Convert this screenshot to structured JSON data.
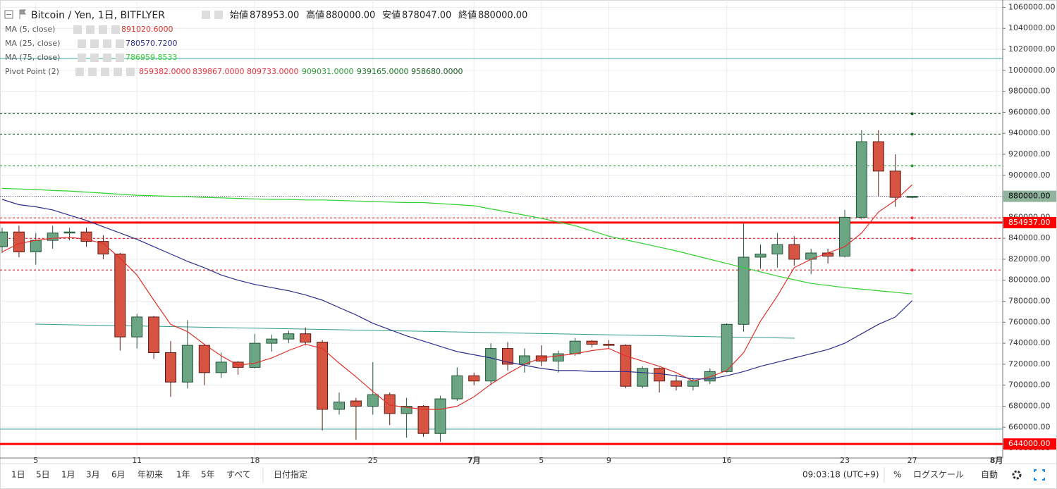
{
  "header": {
    "symbol": "Bitcoin / Yen, 1日, BITFLYER",
    "open_label": "始値",
    "open": "878953.00",
    "high_label": "高値",
    "high": "880000.00",
    "low_label": "安値",
    "low": "878047.00",
    "close_label": "終値",
    "close": "880000.00"
  },
  "chart_data": {
    "type": "candlestick",
    "categories": [
      null,
      null,
      "5",
      null,
      null,
      null,
      null,
      null,
      "11",
      null,
      null,
      null,
      null,
      null,
      null,
      "18",
      null,
      null,
      null,
      null,
      null,
      null,
      "25",
      null,
      null,
      null,
      null,
      null,
      "7月",
      null,
      null,
      null,
      "5",
      null,
      null,
      null,
      "9",
      null,
      null,
      null,
      null,
      null,
      null,
      "16",
      null,
      null,
      null,
      null,
      null,
      null,
      "23",
      null,
      null,
      null,
      "27",
      null,
      null,
      null,
      null,
      "8月"
    ],
    "open": [
      832000,
      846000,
      827000,
      838000,
      845000,
      846000,
      837000,
      825000,
      746000,
      765000,
      731000,
      703000,
      738000,
      712000,
      722000,
      717000,
      740000,
      744000,
      749000,
      741000,
      677000,
      685000,
      680000,
      691000,
      673000,
      680000,
      654000,
      687000,
      709000,
      704000,
      735000,
      720000,
      728000,
      723000,
      730000,
      742000,
      739000,
      738000,
      699000,
      716000,
      704000,
      699000,
      704000,
      713000,
      758000,
      822000,
      825000,
      834000,
      820000,
      826000,
      823000,
      860000,
      932000,
      904000,
      878953,
      null,
      null,
      null,
      null,
      null
    ],
    "high": [
      850000,
      852000,
      845000,
      852000,
      850000,
      850000,
      843000,
      826000,
      768000,
      766000,
      742000,
      762000,
      739000,
      731000,
      723000,
      749000,
      748000,
      752000,
      755000,
      743000,
      693000,
      688000,
      722000,
      693000,
      688000,
      681000,
      690000,
      717000,
      712000,
      740000,
      741000,
      735000,
      738000,
      733000,
      745000,
      743000,
      743000,
      739000,
      718000,
      717000,
      710000,
      707000,
      716000,
      759000,
      854000,
      834000,
      845000,
      842000,
      830000,
      830000,
      867000,
      943000,
      943000,
      920000,
      880000,
      null,
      null,
      null,
      null,
      null
    ],
    "low": [
      826000,
      822000,
      815000,
      830000,
      838000,
      832000,
      820000,
      733000,
      735000,
      725000,
      689000,
      697000,
      700000,
      707000,
      710000,
      716000,
      732000,
      740000,
      738000,
      657000,
      672000,
      648000,
      672000,
      662000,
      650000,
      651000,
      646000,
      685000,
      700000,
      700000,
      714000,
      712000,
      718000,
      712000,
      728000,
      736000,
      735000,
      697000,
      697000,
      693000,
      695000,
      695000,
      701000,
      712000,
      751000,
      811000,
      812000,
      814000,
      806000,
      816000,
      822000,
      858000,
      880000,
      870000,
      878047,
      null,
      null,
      null,
      null,
      null
    ],
    "close": [
      846000,
      827000,
      838000,
      845000,
      846000,
      837000,
      825000,
      746000,
      765000,
      731000,
      703000,
      738000,
      712000,
      722000,
      717000,
      740000,
      744000,
      749000,
      741000,
      677000,
      684000,
      680000,
      691000,
      673000,
      680000,
      654000,
      687000,
      709000,
      704000,
      735000,
      720000,
      728000,
      723000,
      730000,
      742000,
      739000,
      738000,
      699000,
      716000,
      704000,
      699000,
      704000,
      713000,
      758000,
      822000,
      825000,
      834000,
      820000,
      826000,
      823000,
      860000,
      932000,
      904000,
      879000,
      880000,
      null,
      null,
      null,
      null,
      null
    ],
    "up_color": "#6ba583",
    "down_color": "#d75442",
    "ylim": [
      632000,
      1065000
    ],
    "yticks": [
      {
        "value": 640000,
        "label": "640000.00"
      },
      {
        "value": 660000,
        "label": "660000.00"
      },
      {
        "value": 680000,
        "label": "680000.00"
      },
      {
        "value": 700000,
        "label": "700000.00"
      },
      {
        "value": 720000,
        "label": "720000.00"
      },
      {
        "value": 740000,
        "label": "740000.00"
      },
      {
        "value": 760000,
        "label": "760000.00"
      },
      {
        "value": 780000,
        "label": "780000.00"
      },
      {
        "value": 800000,
        "label": "800000.00"
      },
      {
        "value": 820000,
        "label": "820000.00"
      },
      {
        "value": 840000,
        "label": "840000.00"
      },
      {
        "value": 860000,
        "label": "860000.00"
      },
      {
        "value": 880000,
        "label": "880000.00"
      },
      {
        "value": 900000,
        "label": "900000.00"
      },
      {
        "value": 920000,
        "label": "920000.00"
      },
      {
        "value": 940000,
        "label": "940000.00"
      },
      {
        "value": 960000,
        "label": "960000.00"
      },
      {
        "value": 980000,
        "label": "980000.00"
      },
      {
        "value": 1000000,
        "label": "1000000.00"
      },
      {
        "value": 1020000,
        "label": "1020000.00"
      },
      {
        "value": 1040000,
        "label": "1040000.00"
      },
      {
        "value": 1060000,
        "label": "1060000.00"
      }
    ],
    "grid": true,
    "series": [
      {
        "name": "MA (5, close)",
        "color": "#e0302a",
        "value_label": "891020.6000",
        "values": [
          827000,
          835000,
          838000,
          840000,
          841000,
          839000,
          835000,
          821000,
          805000,
          781000,
          758000,
          751000,
          739000,
          728000,
          719000,
          721000,
          726000,
          733000,
          739000,
          735000,
          721000,
          708000,
          694000,
          681000,
          679000,
          677000,
          677000,
          680000,
          689000,
          701000,
          711000,
          720000,
          726000,
          728000,
          730000,
          733000,
          735000,
          728000,
          723000,
          718000,
          712000,
          704000,
          708000,
          714000,
          731000,
          761000,
          785000,
          812000,
          820000,
          826000,
          832000,
          845000,
          865000,
          876000,
          891020.6,
          null,
          null,
          null,
          null,
          null
        ]
      },
      {
        "name": "MA (25, close)",
        "color": "#2a2e8c",
        "value_label": "780570.7200",
        "values": [
          877000,
          872000,
          870000,
          867000,
          862000,
          857000,
          851000,
          845000,
          839000,
          832000,
          825000,
          818000,
          812000,
          805000,
          800000,
          796000,
          793000,
          790000,
          786000,
          781000,
          774000,
          767000,
          759000,
          753000,
          747000,
          742000,
          737000,
          732000,
          729000,
          726000,
          722000,
          719000,
          716000,
          714000,
          714000,
          713000,
          713000,
          713000,
          712000,
          711000,
          709000,
          706000,
          706000,
          709000,
          713000,
          718000,
          722000,
          726000,
          730000,
          734000,
          740000,
          749000,
          758000,
          765000,
          780570.72,
          null,
          null,
          null,
          null,
          null
        ]
      },
      {
        "name": "MA (75, close)",
        "color": "#2ed12e",
        "value_label": "786959.8533",
        "values": [
          887500,
          887000,
          886500,
          885500,
          885000,
          884000,
          883000,
          882000,
          881000,
          880500,
          880000,
          879500,
          879000,
          878500,
          878000,
          877500,
          877000,
          877000,
          876500,
          876500,
          876000,
          875500,
          875000,
          874500,
          874000,
          874000,
          873000,
          872000,
          871000,
          868000,
          865000,
          862000,
          859000,
          855500,
          852000,
          847000,
          842000,
          838500,
          835000,
          831500,
          828000,
          824000,
          820000,
          816000,
          812000,
          808000,
          804000,
          800500,
          797000,
          795000,
          793000,
          791500,
          790000,
          788500,
          786959.8533,
          null,
          null,
          null,
          null,
          null
        ]
      }
    ],
    "pivot": {
      "name": "Pivot Point (2)",
      "values": [
        859382,
        839867,
        809733,
        909031,
        939165,
        958680
      ],
      "value_labels": [
        "859382.0000",
        "839867.0000",
        "809733.0000",
        "909031.0000",
        "939165.0000",
        "958680.0000"
      ],
      "colors": [
        "#e8353f",
        "#e8353f",
        "#e8353f",
        "#2f9e3a",
        "#1e7a2a",
        "#155e22"
      ]
    },
    "horizontal_lines": [
      {
        "value": 854937,
        "label": "854937.00",
        "color": "#ff0000"
      },
      {
        "value": 644000,
        "label": "644000.00",
        "color": "#ff0000"
      }
    ],
    "last_price": {
      "value": 880000,
      "label": "880000.00",
      "color": "#8fb39c"
    }
  },
  "toolbar": {
    "ranges": [
      "1日",
      "5日",
      "1月",
      "3月",
      "6月",
      "年初来",
      "1年",
      "5年",
      "すべて"
    ],
    "custom": "日付指定",
    "time": "09:03:18 (UTC+9)",
    "percent": "%",
    "log": "ログスケール",
    "auto": "自動"
  }
}
